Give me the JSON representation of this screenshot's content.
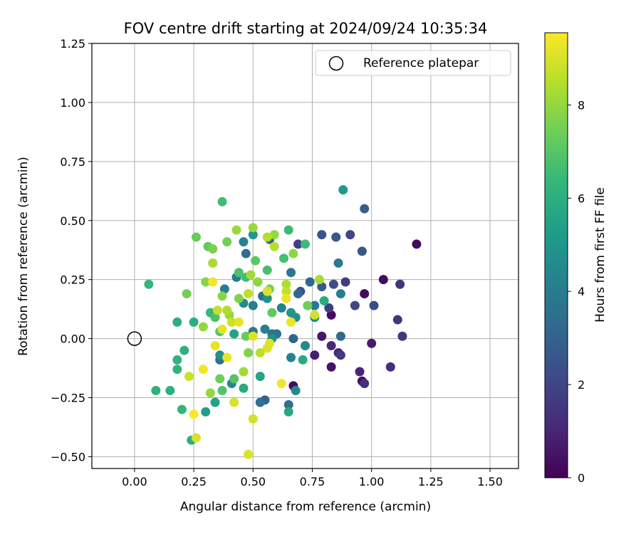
{
  "chart_data": {
    "type": "scatter",
    "title": "FOV centre drift starting at 2024/09/24 10:35:34",
    "xlabel": "Angular distance from reference (arcmin)",
    "ylabel": "Rotation from reference (arcmin)",
    "xlim": [
      -0.18,
      1.62
    ],
    "ylim": [
      -0.55,
      1.25
    ],
    "x_ticks": [
      0.0,
      0.25,
      0.5,
      0.75,
      1.0,
      1.25,
      1.5
    ],
    "x_tick_labels": [
      "0.00",
      "0.25",
      "0.50",
      "0.75",
      "1.00",
      "1.25",
      "1.50"
    ],
    "y_ticks": [
      -0.5,
      -0.25,
      0.0,
      0.25,
      0.5,
      0.75,
      1.0,
      1.25
    ],
    "y_tick_labels": [
      "−0.50",
      "−0.25",
      "0.00",
      "0.25",
      "0.50",
      "0.75",
      "1.00",
      "1.25"
    ],
    "grid": true,
    "legend": {
      "placement": "upper-right",
      "entries": [
        "Reference platepar"
      ]
    },
    "reference_point": {
      "x": 0.0,
      "y": 0.0
    },
    "colorbar": {
      "label": "Hours from first FF file",
      "min": 0,
      "max": 9.55,
      "ticks": [
        0,
        2,
        4,
        6,
        8
      ],
      "tick_labels": [
        "0",
        "2",
        "4",
        "6",
        "8"
      ],
      "colormap": "viridis",
      "colors": [
        "#440154",
        "#482878",
        "#3e4989",
        "#31688e",
        "#26828e",
        "#1f9e89",
        "#35b779",
        "#6ece58",
        "#b5de2b",
        "#fde725"
      ]
    },
    "points": [
      {
        "x": 1.19,
        "y": 0.4,
        "c": 0.2
      },
      {
        "x": 1.05,
        "y": 0.25,
        "c": 0.3
      },
      {
        "x": 0.97,
        "y": 0.19,
        "c": 0.3
      },
      {
        "x": 0.83,
        "y": 0.1,
        "c": 0.3
      },
      {
        "x": 0.96,
        "y": -0.18,
        "c": 0.4
      },
      {
        "x": 0.67,
        "y": -0.2,
        "c": 0.3
      },
      {
        "x": 0.83,
        "y": -0.12,
        "c": 0.5
      },
      {
        "x": 0.79,
        "y": 0.01,
        "c": 0.6
      },
      {
        "x": 1.0,
        "y": -0.02,
        "c": 0.7
      },
      {
        "x": 0.76,
        "y": -0.07,
        "c": 0.8
      },
      {
        "x": 0.86,
        "y": -0.06,
        "c": 1.0
      },
      {
        "x": 0.95,
        "y": -0.14,
        "c": 1.0
      },
      {
        "x": 0.83,
        "y": -0.03,
        "c": 1.1
      },
      {
        "x": 1.08,
        "y": -0.12,
        "c": 1.2
      },
      {
        "x": 0.97,
        "y": -0.19,
        "c": 1.3
      },
      {
        "x": 1.11,
        "y": 0.08,
        "c": 1.4
      },
      {
        "x": 1.12,
        "y": 0.23,
        "c": 1.4
      },
      {
        "x": 1.13,
        "y": 0.01,
        "c": 1.5
      },
      {
        "x": 0.87,
        "y": -0.07,
        "c": 1.6
      },
      {
        "x": 0.89,
        "y": 0.24,
        "c": 1.7
      },
      {
        "x": 0.69,
        "y": 0.4,
        "c": 1.8
      },
      {
        "x": 0.82,
        "y": 0.13,
        "c": 1.8
      },
      {
        "x": 0.91,
        "y": 0.44,
        "c": 2.0
      },
      {
        "x": 0.93,
        "y": 0.14,
        "c": 2.1
      },
      {
        "x": 1.01,
        "y": 0.14,
        "c": 2.2
      },
      {
        "x": 0.84,
        "y": 0.23,
        "c": 2.3
      },
      {
        "x": 0.7,
        "y": 0.2,
        "c": 2.4
      },
      {
        "x": 0.79,
        "y": 0.44,
        "c": 2.5
      },
      {
        "x": 0.96,
        "y": 0.37,
        "c": 2.6
      },
      {
        "x": 0.85,
        "y": 0.43,
        "c": 2.7
      },
      {
        "x": 0.97,
        "y": 0.55,
        "c": 2.8
      },
      {
        "x": 0.79,
        "y": 0.22,
        "c": 2.8
      },
      {
        "x": 0.67,
        "y": 0.0,
        "c": 3.0
      },
      {
        "x": 0.55,
        "y": -0.26,
        "c": 3.0
      },
      {
        "x": 0.57,
        "y": 0.42,
        "c": 3.1
      },
      {
        "x": 0.74,
        "y": 0.24,
        "c": 3.2
      },
      {
        "x": 0.69,
        "y": 0.19,
        "c": 3.2
      },
      {
        "x": 0.87,
        "y": 0.01,
        "c": 3.3
      },
      {
        "x": 0.54,
        "y": 0.18,
        "c": 3.4
      },
      {
        "x": 0.47,
        "y": 0.36,
        "c": 3.4
      },
      {
        "x": 0.58,
        "y": 0.02,
        "c": 3.5
      },
      {
        "x": 0.65,
        "y": -0.28,
        "c": 3.5
      },
      {
        "x": 0.53,
        "y": -0.27,
        "c": 3.6
      },
      {
        "x": 0.36,
        "y": -0.09,
        "c": 3.6
      },
      {
        "x": 0.5,
        "y": 0.03,
        "c": 3.7
      },
      {
        "x": 0.6,
        "y": 0.02,
        "c": 3.7
      },
      {
        "x": 0.66,
        "y": 0.28,
        "c": 3.8
      },
      {
        "x": 0.76,
        "y": 0.14,
        "c": 3.8
      },
      {
        "x": 0.86,
        "y": 0.32,
        "c": 3.9
      },
      {
        "x": 0.87,
        "y": 0.19,
        "c": 4.0
      },
      {
        "x": 0.43,
        "y": 0.26,
        "c": 4.0
      },
      {
        "x": 0.5,
        "y": 0.14,
        "c": 4.1
      },
      {
        "x": 0.38,
        "y": 0.21,
        "c": 4.1
      },
      {
        "x": 0.55,
        "y": 0.04,
        "c": 4.2
      },
      {
        "x": 0.62,
        "y": 0.13,
        "c": 4.2
      },
      {
        "x": 0.46,
        "y": 0.41,
        "c": 4.3
      },
      {
        "x": 0.66,
        "y": -0.08,
        "c": 4.3
      },
      {
        "x": 0.41,
        "y": -0.19,
        "c": 4.4
      },
      {
        "x": 0.68,
        "y": -0.22,
        "c": 4.5
      },
      {
        "x": 0.76,
        "y": 0.09,
        "c": 4.5
      },
      {
        "x": 0.72,
        "y": -0.03,
        "c": 4.6
      },
      {
        "x": 0.46,
        "y": 0.15,
        "c": 4.6
      },
      {
        "x": 0.68,
        "y": 0.09,
        "c": 4.7
      },
      {
        "x": 0.58,
        "y": 0.0,
        "c": 4.8
      },
      {
        "x": 0.36,
        "y": -0.07,
        "c": 4.8
      },
      {
        "x": 0.56,
        "y": 0.17,
        "c": 4.9
      },
      {
        "x": 0.66,
        "y": 0.11,
        "c": 5.0
      },
      {
        "x": 0.5,
        "y": 0.44,
        "c": 5.0
      },
      {
        "x": 0.88,
        "y": 0.63,
        "c": 5.2
      },
      {
        "x": 0.3,
        "y": -0.31,
        "c": 5.4
      },
      {
        "x": 0.34,
        "y": -0.27,
        "c": 5.5
      },
      {
        "x": 0.42,
        "y": 0.02,
        "c": 5.5
      },
      {
        "x": 0.53,
        "y": -0.16,
        "c": 5.6
      },
      {
        "x": 0.65,
        "y": -0.31,
        "c": 5.7
      },
      {
        "x": 0.46,
        "y": -0.21,
        "c": 5.8
      },
      {
        "x": 0.71,
        "y": -0.09,
        "c": 5.8
      },
      {
        "x": 0.8,
        "y": 0.16,
        "c": 5.9
      },
      {
        "x": 0.24,
        "y": -0.43,
        "c": 6.0
      },
      {
        "x": 0.18,
        "y": 0.07,
        "c": 6.0
      },
      {
        "x": 0.25,
        "y": 0.07,
        "c": 6.0
      },
      {
        "x": 0.21,
        "y": -0.05,
        "c": 6.1
      },
      {
        "x": 0.15,
        "y": -0.22,
        "c": 6.1
      },
      {
        "x": 0.09,
        "y": -0.22,
        "c": 6.1
      },
      {
        "x": 0.18,
        "y": -0.13,
        "c": 6.2
      },
      {
        "x": 0.18,
        "y": -0.09,
        "c": 6.2
      },
      {
        "x": 0.06,
        "y": 0.23,
        "c": 6.3
      },
      {
        "x": 0.2,
        "y": -0.3,
        "c": 6.3
      },
      {
        "x": 0.32,
        "y": 0.11,
        "c": 6.4
      },
      {
        "x": 0.65,
        "y": 0.46,
        "c": 6.5
      },
      {
        "x": 0.72,
        "y": 0.4,
        "c": 6.5
      },
      {
        "x": 0.37,
        "y": 0.58,
        "c": 6.6
      },
      {
        "x": 0.47,
        "y": 0.26,
        "c": 6.6
      },
      {
        "x": 0.56,
        "y": 0.29,
        "c": 6.7
      },
      {
        "x": 0.63,
        "y": 0.34,
        "c": 6.7
      },
      {
        "x": 0.34,
        "y": 0.09,
        "c": 6.8
      },
      {
        "x": 0.44,
        "y": 0.28,
        "c": 6.8
      },
      {
        "x": 0.37,
        "y": -0.22,
        "c": 6.9
      },
      {
        "x": 0.42,
        "y": -0.17,
        "c": 7.0
      },
      {
        "x": 0.36,
        "y": 0.03,
        "c": 7.0
      },
      {
        "x": 0.51,
        "y": 0.33,
        "c": 7.1
      },
      {
        "x": 0.58,
        "y": 0.11,
        "c": 7.2
      },
      {
        "x": 0.31,
        "y": 0.39,
        "c": 7.2
      },
      {
        "x": 0.26,
        "y": 0.43,
        "c": 7.3
      },
      {
        "x": 0.47,
        "y": 0.01,
        "c": 7.3
      },
      {
        "x": 0.73,
        "y": 0.14,
        "c": 7.4
      },
      {
        "x": 0.36,
        "y": -0.17,
        "c": 7.4
      },
      {
        "x": 0.39,
        "y": 0.41,
        "c": 7.5
      },
      {
        "x": 0.22,
        "y": 0.19,
        "c": 7.5
      },
      {
        "x": 0.33,
        "y": 0.38,
        "c": 7.6
      },
      {
        "x": 0.57,
        "y": 0.21,
        "c": 7.6
      },
      {
        "x": 0.48,
        "y": -0.06,
        "c": 7.7
      },
      {
        "x": 0.44,
        "y": 0.17,
        "c": 7.7
      },
      {
        "x": 0.37,
        "y": 0.18,
        "c": 7.8
      },
      {
        "x": 0.3,
        "y": 0.24,
        "c": 7.8
      },
      {
        "x": 0.52,
        "y": 0.24,
        "c": 7.9
      },
      {
        "x": 0.67,
        "y": 0.36,
        "c": 7.9
      },
      {
        "x": 0.59,
        "y": 0.44,
        "c": 8.0
      },
      {
        "x": 0.4,
        "y": 0.1,
        "c": 8.0
      },
      {
        "x": 0.29,
        "y": 0.05,
        "c": 8.0
      },
      {
        "x": 0.32,
        "y": -0.23,
        "c": 8.0
      },
      {
        "x": 0.5,
        "y": 0.47,
        "c": 8.1
      },
      {
        "x": 0.43,
        "y": 0.46,
        "c": 8.1
      },
      {
        "x": 0.49,
        "y": 0.27,
        "c": 8.2
      },
      {
        "x": 0.46,
        "y": -0.14,
        "c": 8.2
      },
      {
        "x": 0.33,
        "y": 0.32,
        "c": 8.3
      },
      {
        "x": 0.78,
        "y": 0.25,
        "c": 8.3
      },
      {
        "x": 0.39,
        "y": 0.12,
        "c": 8.4
      },
      {
        "x": 0.64,
        "y": 0.23,
        "c": 8.4
      },
      {
        "x": 0.59,
        "y": 0.39,
        "c": 8.5
      },
      {
        "x": 0.56,
        "y": 0.43,
        "c": 8.5
      },
      {
        "x": 0.53,
        "y": -0.06,
        "c": 8.6
      },
      {
        "x": 0.48,
        "y": 0.19,
        "c": 8.6
      },
      {
        "x": 0.64,
        "y": 0.2,
        "c": 8.7
      },
      {
        "x": 0.35,
        "y": 0.12,
        "c": 8.7
      },
      {
        "x": 0.41,
        "y": 0.07,
        "c": 8.8
      },
      {
        "x": 0.23,
        "y": -0.16,
        "c": 8.8
      },
      {
        "x": 0.76,
        "y": 0.1,
        "c": 8.9
      },
      {
        "x": 0.5,
        "y": -0.34,
        "c": 8.9
      },
      {
        "x": 0.48,
        "y": -0.49,
        "c": 9.0
      },
      {
        "x": 0.26,
        "y": -0.42,
        "c": 9.0
      },
      {
        "x": 0.42,
        "y": -0.27,
        "c": 9.0
      },
      {
        "x": 0.56,
        "y": 0.2,
        "c": 9.0
      },
      {
        "x": 0.57,
        "y": -0.02,
        "c": 9.1
      },
      {
        "x": 0.56,
        "y": -0.04,
        "c": 9.1
      },
      {
        "x": 0.5,
        "y": 0.01,
        "c": 9.1
      },
      {
        "x": 0.37,
        "y": 0.04,
        "c": 9.2
      },
      {
        "x": 0.34,
        "y": -0.03,
        "c": 9.2
      },
      {
        "x": 0.44,
        "y": 0.07,
        "c": 9.2
      },
      {
        "x": 0.64,
        "y": 0.17,
        "c": 9.3
      },
      {
        "x": 0.66,
        "y": 0.07,
        "c": 9.3
      },
      {
        "x": 0.39,
        "y": -0.08,
        "c": 9.3
      },
      {
        "x": 0.33,
        "y": 0.24,
        "c": 9.4
      },
      {
        "x": 0.62,
        "y": -0.19,
        "c": 9.4
      },
      {
        "x": 0.29,
        "y": -0.13,
        "c": 9.4
      },
      {
        "x": 0.25,
        "y": -0.32,
        "c": 9.5
      }
    ]
  }
}
